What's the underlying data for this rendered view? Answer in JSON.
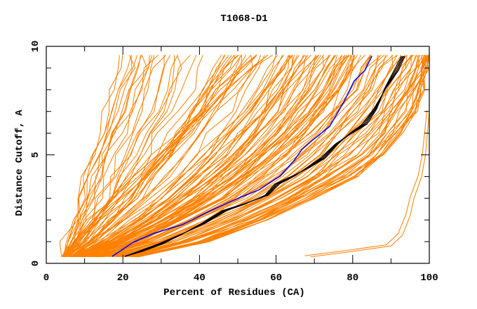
{
  "chart_data": {
    "type": "line",
    "title": "T1068-D1",
    "xlabel": "Percent of Residues (CA)",
    "ylabel": "Distance Cutoff, A",
    "xlim": [
      0,
      100
    ],
    "ylim": [
      0,
      10
    ],
    "xticks": [
      0,
      20,
      40,
      60,
      80,
      100
    ],
    "yticks": [
      0,
      5,
      10
    ],
    "xtick_labels": [
      "0",
      "20",
      "40",
      "60",
      "80",
      "100"
    ],
    "ytick_labels": [
      "0",
      "5",
      "10"
    ],
    "grid": false,
    "legend": "none",
    "colors": {
      "models": "#ff8000",
      "highlight_black": "#000000",
      "highlight_blue": "#0000ff"
    },
    "model_y_levels": [
      0.3,
      1,
      2,
      3,
      4,
      5,
      6,
      7,
      8,
      9,
      9.6
    ],
    "model_series_x": [
      [
        4,
        5,
        7,
        9,
        10,
        12,
        14,
        15,
        17,
        18,
        19
      ],
      [
        5,
        6,
        8,
        10,
        12,
        14,
        17,
        19,
        21,
        23,
        24
      ],
      [
        4,
        7,
        10,
        13,
        15,
        17,
        19,
        22,
        24,
        26,
        27
      ],
      [
        6,
        9,
        13,
        16,
        19,
        22,
        24,
        27,
        29,
        31,
        32
      ],
      [
        5,
        9,
        14,
        18,
        22,
        26,
        29,
        32,
        35,
        37,
        38
      ],
      [
        4,
        8,
        12,
        18,
        24,
        30,
        36,
        42,
        48,
        54,
        58
      ],
      [
        5,
        10,
        16,
        21,
        26,
        31,
        35,
        40,
        45,
        50,
        54
      ],
      [
        7,
        11,
        17,
        22,
        27,
        31,
        35,
        38,
        41,
        44,
        46
      ],
      [
        6,
        12,
        19,
        25,
        30,
        35,
        39,
        43,
        47,
        50,
        52
      ],
      [
        8,
        14,
        22,
        29,
        35,
        41,
        46,
        50,
        54,
        57,
        59
      ],
      [
        6,
        15,
        24,
        32,
        38,
        44,
        49,
        54,
        58,
        62,
        64
      ],
      [
        9,
        16,
        25,
        33,
        40,
        46,
        51,
        56,
        60,
        63,
        65
      ],
      [
        7,
        17,
        27,
        36,
        43,
        49,
        54,
        58,
        62,
        66,
        68
      ],
      [
        10,
        18,
        28,
        37,
        44,
        50,
        55,
        60,
        64,
        67,
        69
      ],
      [
        9,
        19,
        30,
        39,
        47,
        53,
        58,
        63,
        67,
        70,
        72
      ],
      [
        12,
        20,
        31,
        40,
        48,
        54,
        60,
        65,
        69,
        72,
        74
      ],
      [
        10,
        21,
        33,
        42,
        50,
        57,
        63,
        68,
        72,
        75,
        77
      ],
      [
        8,
        22,
        34,
        44,
        52,
        58,
        64,
        69,
        73,
        76,
        78
      ],
      [
        12,
        23,
        35,
        45,
        53,
        60,
        66,
        71,
        75,
        78,
        80
      ],
      [
        14,
        24,
        36,
        47,
        55,
        62,
        68,
        73,
        77,
        80,
        82
      ],
      [
        11,
        26,
        38,
        49,
        58,
        65,
        71,
        76,
        80,
        83,
        85
      ],
      [
        15,
        28,
        41,
        52,
        61,
        68,
        74,
        79,
        83,
        86,
        88
      ],
      [
        13,
        30,
        43,
        55,
        64,
        71,
        77,
        82,
        86,
        89,
        91
      ],
      [
        16,
        32,
        46,
        58,
        67,
        74,
        80,
        85,
        89,
        92,
        94
      ],
      [
        18,
        34,
        48,
        60,
        70,
        77,
        83,
        88,
        91,
        94,
        96
      ],
      [
        20,
        36,
        51,
        63,
        72,
        80,
        86,
        90,
        93,
        96,
        98
      ],
      [
        22,
        38,
        53,
        65,
        75,
        83,
        88,
        92,
        95,
        98,
        99
      ],
      [
        23,
        40,
        55,
        67,
        77,
        85,
        90,
        94,
        97,
        99,
        100
      ],
      [
        24,
        42,
        57,
        70,
        80,
        87,
        92,
        96,
        98,
        99,
        100
      ]
    ],
    "outlier_series": [
      [
        69,
        0.3
      ],
      [
        80,
        0.55
      ],
      [
        90,
        0.8
      ],
      [
        93,
        1.3
      ],
      [
        95,
        2.2
      ],
      [
        96,
        3
      ],
      [
        98,
        4
      ],
      [
        99,
        5
      ],
      [
        99.5,
        6
      ],
      [
        100,
        7
      ]
    ],
    "black_series": [
      [
        20.5,
        0.32
      ],
      [
        24.5,
        0.55
      ],
      [
        30,
        0.91
      ],
      [
        35.5,
        1.36
      ],
      [
        41,
        1.84
      ],
      [
        46.5,
        2.43
      ],
      [
        52,
        2.75
      ],
      [
        57.5,
        3.14
      ],
      [
        60.3,
        3.66
      ],
      [
        64.8,
        4.05
      ],
      [
        68.5,
        4.43
      ],
      [
        72.2,
        4.85
      ],
      [
        75.8,
        5.5
      ],
      [
        79.5,
        5.99
      ],
      [
        83.1,
        6.41
      ],
      [
        85.9,
        7.12
      ],
      [
        88.6,
        8.09
      ],
      [
        91.4,
        8.9
      ],
      [
        93.2,
        9.55
      ]
    ],
    "blue_series": [
      [
        17.2,
        0.32
      ],
      [
        22.7,
        0.97
      ],
      [
        28.2,
        1.39
      ],
      [
        35.5,
        1.78
      ],
      [
        42.9,
        2.43
      ],
      [
        50.2,
        3.01
      ],
      [
        55.7,
        3.4
      ],
      [
        61.2,
        4.05
      ],
      [
        64.8,
        4.76
      ],
      [
        66.7,
        5.24
      ],
      [
        69.4,
        5.66
      ],
      [
        74,
        6.31
      ],
      [
        77.7,
        7.44
      ],
      [
        80.4,
        8.41
      ],
      [
        83.2,
        8.9
      ],
      [
        85,
        9.55
      ]
    ]
  }
}
